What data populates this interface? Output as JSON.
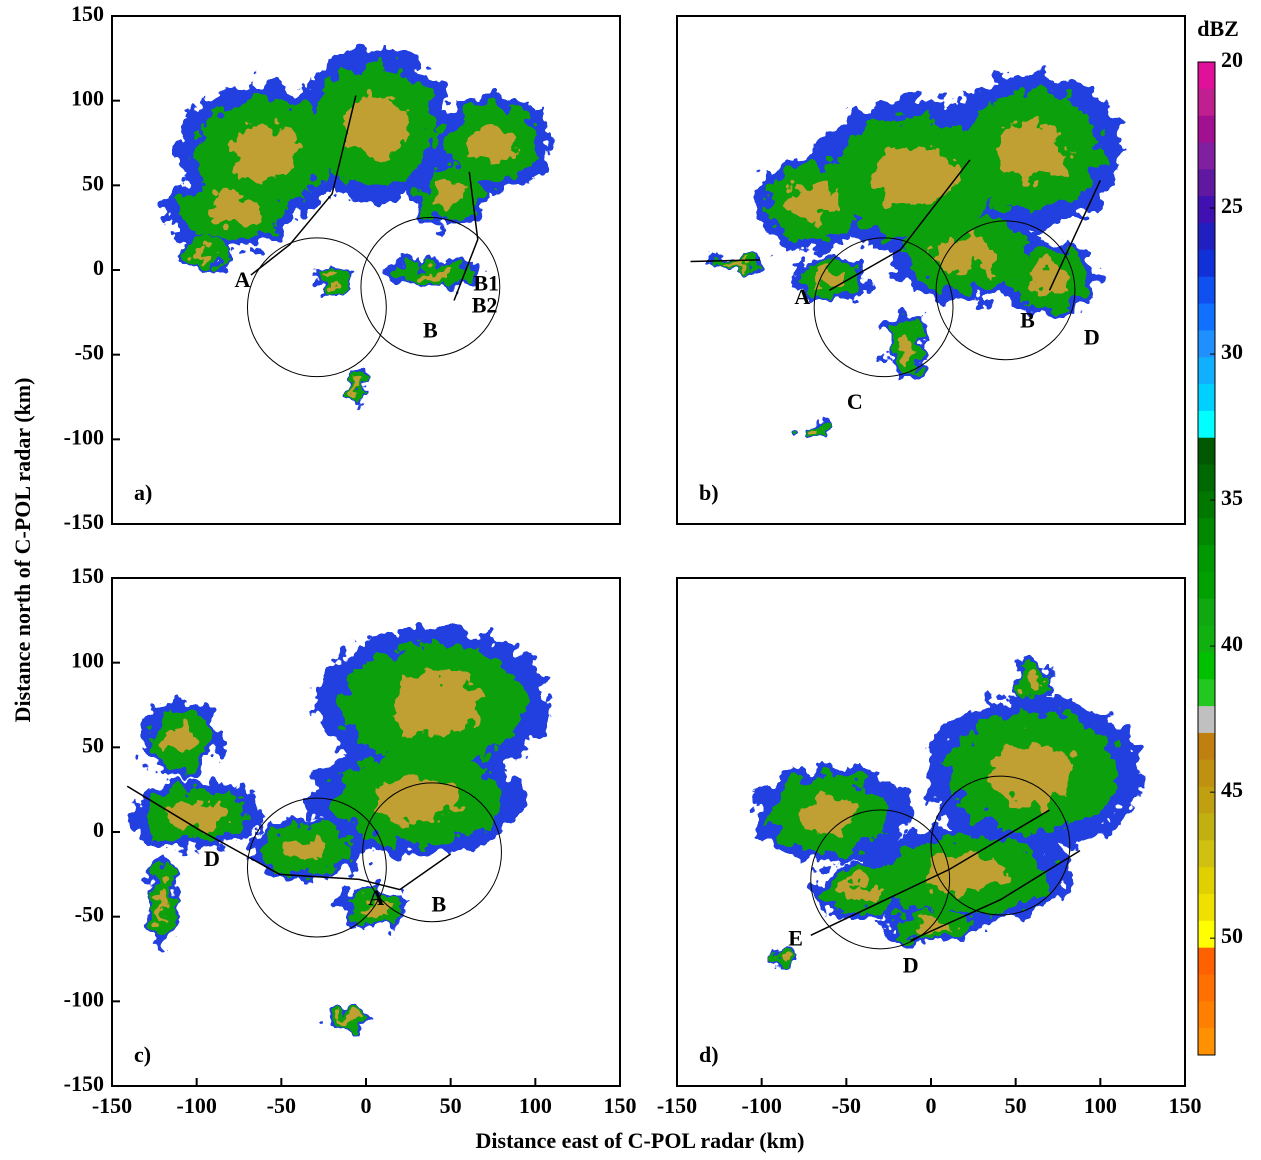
{
  "figure": {
    "xlabel": "Distance east of C-POL radar (km)",
    "ylabel": "Distance north of C-POL radar (km)"
  },
  "colorbar": {
    "title": "dBZ",
    "clim": [
      20,
      54
    ],
    "ticks": [
      20,
      25,
      30,
      35,
      40,
      45,
      50
    ],
    "colors": [
      "#e0109a",
      "#c0208f",
      "#a01090",
      "#8020a0",
      "#6018a0",
      "#4010b0",
      "#2020c0",
      "#1030d8",
      "#1050f0",
      "#1070ff",
      "#2090ff",
      "#10b0ff",
      "#00d0ff",
      "#00ffff",
      "#005800",
      "#006800",
      "#007800",
      "#008800",
      "#009800",
      "#00a000",
      "#10a810",
      "#10b010",
      "#00c000",
      "#20c820",
      "#c0c0c0",
      "#c08010",
      "#c09010",
      "#c0a010",
      "#c0b010",
      "#d0c010",
      "#e0d000",
      "#f0e000",
      "#ffff00",
      "#ff6000",
      "#ff7000",
      "#ff8000",
      "#ff9000"
    ]
  },
  "chart_data": [
    {
      "type": "radar-map",
      "panel_label": "a)",
      "xlim": [
        -150,
        150
      ],
      "ylim": [
        -150,
        150
      ],
      "yticks": [
        150,
        100,
        50,
        0,
        -50,
        -100,
        -150
      ],
      "circles": [
        {
          "x": -29,
          "y": -22,
          "r": 41
        },
        {
          "x": 38,
          "y": -10,
          "r": 41
        }
      ],
      "tracks": [
        {
          "x": [
            -68,
            -45,
            -20,
            -6
          ],
          "y": [
            -3,
            15,
            45,
            103
          ]
        },
        {
          "x": [
            61,
            66,
            52
          ],
          "y": [
            58,
            18,
            -18
          ]
        }
      ],
      "annotations": [
        {
          "text": "A",
          "x": -73,
          "y": -7
        },
        {
          "text": "B",
          "x": 38,
          "y": -37
        },
        {
          "text": "B1",
          "x": 71,
          "y": -9
        },
        {
          "text": "B2",
          "x": 70,
          "y": -22
        }
      ]
    },
    {
      "type": "radar-map",
      "panel_label": "b)",
      "xlim": [
        -150,
        150
      ],
      "ylim": [
        -150,
        150
      ],
      "circles": [
        {
          "x": -28,
          "y": -22,
          "r": 41
        },
        {
          "x": 44,
          "y": -12,
          "r": 41
        }
      ],
      "tracks": [
        {
          "x": [
            -142,
            -101
          ],
          "y": [
            5,
            6
          ]
        },
        {
          "x": [
            -60,
            -18,
            23
          ],
          "y": [
            -12,
            12,
            65
          ]
        },
        {
          "x": [
            70,
            100
          ],
          "y": [
            -12,
            53
          ]
        }
      ],
      "annotations": [
        {
          "text": "A",
          "x": -76,
          "y": -17
        },
        {
          "text": "B",
          "x": 57,
          "y": -31
        },
        {
          "text": "C",
          "x": -45,
          "y": -79
        },
        {
          "text": "D",
          "x": 95,
          "y": -41
        }
      ]
    },
    {
      "type": "radar-map",
      "panel_label": "c)",
      "xlim": [
        -150,
        150
      ],
      "ylim": [
        -150,
        150
      ],
      "xticks": [
        -150,
        -100,
        -50,
        0,
        50,
        100,
        150
      ],
      "yticks": [
        150,
        100,
        50,
        0,
        -50,
        -100,
        -150
      ],
      "circles": [
        {
          "x": -29,
          "y": -21,
          "r": 41
        },
        {
          "x": 39,
          "y": -12,
          "r": 41
        }
      ],
      "tracks": [
        {
          "x": [
            -141,
            -98,
            -51,
            -4,
            20,
            50
          ],
          "y": [
            27,
            1,
            -25,
            -28,
            -34,
            -13
          ]
        }
      ],
      "annotations": [
        {
          "text": "D",
          "x": -91,
          "y": -17
        },
        {
          "text": "A",
          "x": 6,
          "y": -40
        },
        {
          "text": "B",
          "x": 43,
          "y": -44
        }
      ]
    },
    {
      "type": "radar-map",
      "panel_label": "d)",
      "xlim": [
        -150,
        150
      ],
      "ylim": [
        -150,
        150
      ],
      "xticks": [
        -150,
        -100,
        -50,
        0,
        50,
        100,
        150
      ],
      "circles": [
        {
          "x": -30,
          "y": -28,
          "r": 41
        },
        {
          "x": 41,
          "y": -8,
          "r": 41
        }
      ],
      "tracks": [
        {
          "x": [
            -71,
            11,
            70
          ],
          "y": [
            -61,
            -22,
            13
          ]
        },
        {
          "x": [
            -12,
            41,
            88
          ],
          "y": [
            -64,
            -40,
            -11
          ]
        }
      ],
      "annotations": [
        {
          "text": "E",
          "x": -80,
          "y": -64
        },
        {
          "text": "D",
          "x": -12,
          "y": -80
        }
      ]
    }
  ]
}
